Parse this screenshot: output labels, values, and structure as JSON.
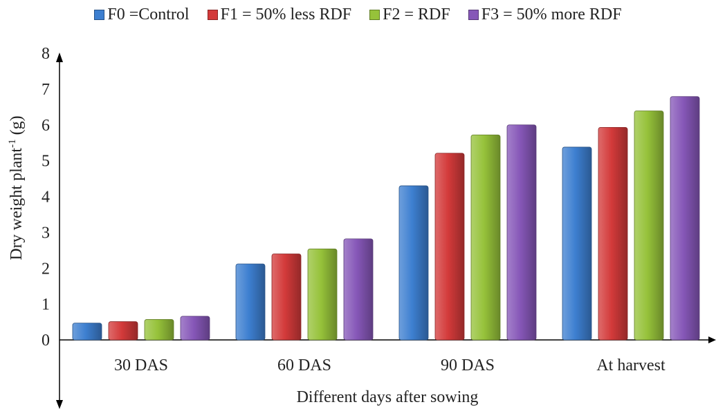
{
  "chart_data": {
    "type": "bar",
    "categories": [
      "30 DAS",
      "60 DAS",
      "90 DAS",
      "At harvest"
    ],
    "series": [
      {
        "name": "F0 =Control",
        "values": [
          0.47,
          2.12,
          4.3,
          5.38
        ],
        "color": "#3d7fd0"
      },
      {
        "name": "F1 = 50% less RDF",
        "values": [
          0.51,
          2.4,
          5.21,
          5.93
        ],
        "color": "#d33a3a"
      },
      {
        "name": "F2 = RDF",
        "values": [
          0.57,
          2.54,
          5.72,
          6.39
        ],
        "color": "#96c23a"
      },
      {
        "name": "F3 = 50% more RDF",
        "values": [
          0.66,
          2.82,
          6.0,
          6.79
        ],
        "color": "#8657b8"
      }
    ],
    "ylim": [
      0,
      8
    ],
    "yticks": [
      "0",
      "1",
      "2",
      "3",
      "4",
      "5",
      "6",
      "7",
      "8"
    ],
    "ylabel": "Dry weight plant",
    "ylabel_sup": "-1",
    "ylabel_unit": " (g)",
    "xlabel": "Different days after sowing",
    "grid": false,
    "legend_position": "top"
  }
}
